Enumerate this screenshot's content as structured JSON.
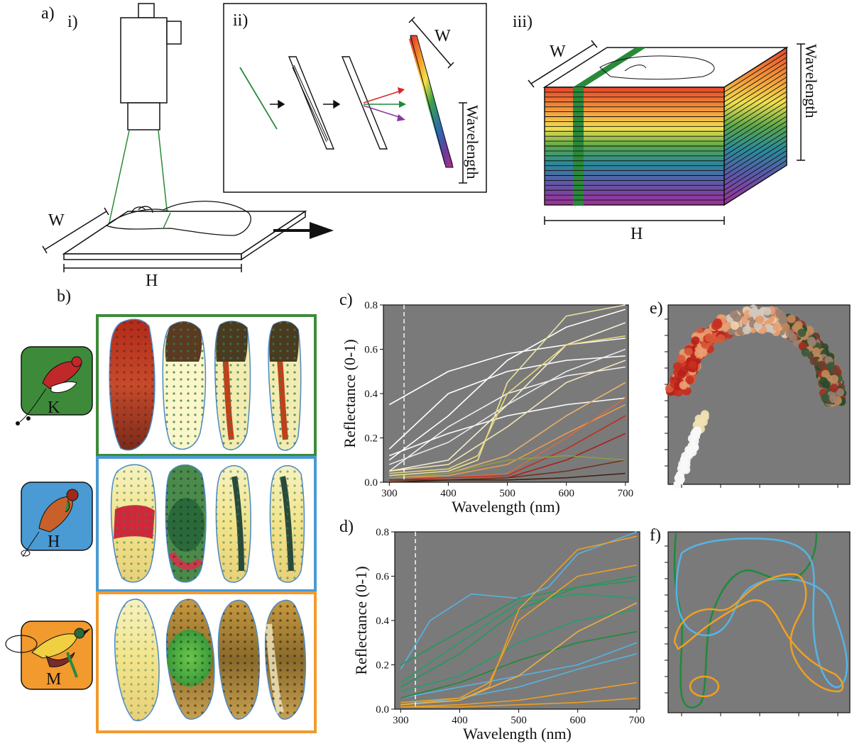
{
  "panel_labels": {
    "a": "a)",
    "ai": "i)",
    "aii": "ii)",
    "aiii": "iii)",
    "b": "b)",
    "c": "c)",
    "d": "d)",
    "e": "e)",
    "f": "f)"
  },
  "dims": {
    "W": "W",
    "H": "H",
    "wavelength": "Wavelength"
  },
  "species": [
    {
      "letter": "K",
      "box_color": "#3d8b3a",
      "frame_color": "#3d8b3a"
    },
    {
      "letter": "H",
      "box_color": "#4a9ad4",
      "frame_color": "#4a9ad4"
    },
    {
      "letter": "M",
      "box_color": "#f29a2e",
      "frame_color": "#f29a2e"
    }
  ],
  "colors": {
    "plot_bg": "#7a7a7a",
    "green": "#1f8a3a",
    "blue": "#55b4e6",
    "orange": "#f0a020"
  },
  "chart_data": [
    {
      "panel": "c",
      "type": "line",
      "xlabel": "Wavelength (nm)",
      "ylabel": "Reflectance (0-1)",
      "xlim": [
        290,
        705
      ],
      "ylim": [
        0,
        0.8
      ],
      "xticks": [
        300,
        400,
        500,
        600,
        700
      ],
      "yticks": [
        0.0,
        0.2,
        0.4,
        0.6,
        0.8
      ],
      "dashed_vline_x": 325,
      "grid": false,
      "series": [
        {
          "color": "#ffffff",
          "x": [
            300,
            400,
            500,
            600,
            700
          ],
          "y": [
            0.35,
            0.5,
            0.58,
            0.62,
            0.65
          ]
        },
        {
          "color": "#ffffff",
          "x": [
            300,
            400,
            500,
            600,
            700
          ],
          "y": [
            0.1,
            0.3,
            0.55,
            0.7,
            0.78
          ]
        },
        {
          "color": "#f0f0f0",
          "x": [
            300,
            400,
            500,
            600,
            700
          ],
          "y": [
            0.05,
            0.25,
            0.4,
            0.48,
            0.52
          ]
        },
        {
          "color": "#ffffff",
          "x": [
            300,
            400,
            500,
            600,
            700
          ],
          "y": [
            0.12,
            0.22,
            0.3,
            0.35,
            0.38
          ]
        },
        {
          "color": "#e8e8e8",
          "x": [
            300,
            400,
            500,
            600,
            700
          ],
          "y": [
            0.08,
            0.18,
            0.35,
            0.5,
            0.6
          ]
        },
        {
          "color": "#ffffff",
          "x": [
            300,
            400,
            500,
            600,
            700
          ],
          "y": [
            0.15,
            0.4,
            0.5,
            0.55,
            0.57
          ]
        },
        {
          "color": "#f5f0d0",
          "x": [
            300,
            400,
            500,
            600,
            700
          ],
          "y": [
            0.05,
            0.1,
            0.35,
            0.62,
            0.72
          ]
        },
        {
          "color": "#ece4a0",
          "x": [
            300,
            400,
            450,
            500,
            600,
            700
          ],
          "y": [
            0.03,
            0.05,
            0.1,
            0.45,
            0.75,
            0.8
          ]
        },
        {
          "color": "#e8d878",
          "x": [
            300,
            400,
            450,
            500,
            600,
            700
          ],
          "y": [
            0.04,
            0.06,
            0.12,
            0.4,
            0.62,
            0.66
          ]
        },
        {
          "color": "#f4e7b8",
          "x": [
            300,
            400,
            500,
            600,
            700
          ],
          "y": [
            0.05,
            0.08,
            0.25,
            0.45,
            0.55
          ]
        },
        {
          "color": "#e8b070",
          "x": [
            300,
            400,
            500,
            600,
            700
          ],
          "y": [
            0.02,
            0.04,
            0.12,
            0.3,
            0.45
          ]
        },
        {
          "color": "#e89a50",
          "x": [
            300,
            400,
            500,
            600,
            700
          ],
          "y": [
            0.02,
            0.03,
            0.08,
            0.22,
            0.35
          ]
        },
        {
          "color": "#d86a40",
          "x": [
            300,
            400,
            500,
            600,
            700
          ],
          "y": [
            0.01,
            0.02,
            0.04,
            0.2,
            0.38
          ]
        },
        {
          "color": "#c0301e",
          "x": [
            300,
            400,
            500,
            600,
            700
          ],
          "y": [
            0.01,
            0.02,
            0.03,
            0.15,
            0.3
          ]
        },
        {
          "color": "#a82018",
          "x": [
            300,
            400,
            500,
            600,
            700
          ],
          "y": [
            0.01,
            0.01,
            0.02,
            0.1,
            0.22
          ]
        },
        {
          "color": "#703018",
          "x": [
            300,
            400,
            500,
            600,
            700
          ],
          "y": [
            0.01,
            0.01,
            0.02,
            0.05,
            0.1
          ]
        },
        {
          "color": "#3c2010",
          "x": [
            300,
            400,
            500,
            600,
            700
          ],
          "y": [
            0.0,
            0.01,
            0.01,
            0.02,
            0.04
          ]
        },
        {
          "color": "#8aa048",
          "x": [
            300,
            400,
            500,
            600,
            700
          ],
          "y": [
            0.02,
            0.04,
            0.1,
            0.12,
            0.1
          ]
        }
      ]
    },
    {
      "panel": "d",
      "type": "line",
      "xlabel": "Wavelength (nm)",
      "ylabel": "Reflectance (0-1)",
      "xlim": [
        290,
        705
      ],
      "ylim": [
        0,
        0.8
      ],
      "xticks": [
        300,
        400,
        500,
        600,
        700
      ],
      "yticks": [
        0.0,
        0.2,
        0.4,
        0.6,
        0.8
      ],
      "dashed_vline_x": 325,
      "grid": false,
      "series": [
        {
          "color": "#55b4e6",
          "x": [
            300,
            350,
            420,
            500,
            550,
            600,
            700
          ],
          "y": [
            0.18,
            0.4,
            0.52,
            0.5,
            0.55,
            0.7,
            0.8
          ]
        },
        {
          "color": "#55b4e6",
          "x": [
            300,
            400,
            500,
            600,
            700
          ],
          "y": [
            0.05,
            0.1,
            0.15,
            0.2,
            0.3
          ]
        },
        {
          "color": "#55b4e6",
          "x": [
            300,
            400,
            500,
            600,
            700
          ],
          "y": [
            0.02,
            0.05,
            0.1,
            0.18,
            0.25
          ]
        },
        {
          "color": "#1f9a5a",
          "x": [
            300,
            400,
            500,
            600,
            700
          ],
          "y": [
            0.2,
            0.35,
            0.5,
            0.55,
            0.58
          ]
        },
        {
          "color": "#1f9a5a",
          "x": [
            300,
            400,
            500,
            600,
            700
          ],
          "y": [
            0.1,
            0.25,
            0.45,
            0.55,
            0.6
          ]
        },
        {
          "color": "#22a06a",
          "x": [
            300,
            400,
            500,
            600,
            700
          ],
          "y": [
            0.08,
            0.15,
            0.3,
            0.4,
            0.45
          ]
        },
        {
          "color": "#1f8a3a",
          "x": [
            300,
            400,
            500,
            600,
            700
          ],
          "y": [
            0.05,
            0.12,
            0.22,
            0.3,
            0.35
          ]
        },
        {
          "color": "#22a06a",
          "x": [
            300,
            400,
            500,
            600,
            700
          ],
          "y": [
            0.12,
            0.3,
            0.48,
            0.52,
            0.5
          ]
        },
        {
          "color": "#f0a020",
          "x": [
            300,
            400,
            450,
            500,
            600,
            700
          ],
          "y": [
            0.02,
            0.04,
            0.1,
            0.45,
            0.72,
            0.78
          ]
        },
        {
          "color": "#f0a020",
          "x": [
            300,
            400,
            450,
            500,
            600,
            700
          ],
          "y": [
            0.03,
            0.05,
            0.12,
            0.4,
            0.6,
            0.65
          ]
        },
        {
          "color": "#f0b040",
          "x": [
            300,
            400,
            500,
            600,
            700
          ],
          "y": [
            0.02,
            0.04,
            0.15,
            0.35,
            0.48
          ]
        },
        {
          "color": "#f0a020",
          "x": [
            300,
            400,
            500,
            600,
            700
          ],
          "y": [
            0.01,
            0.02,
            0.04,
            0.08,
            0.12
          ]
        },
        {
          "color": "#f0a020",
          "x": [
            300,
            400,
            500,
            600,
            700
          ],
          "y": [
            0.01,
            0.01,
            0.02,
            0.03,
            0.05
          ]
        }
      ]
    },
    {
      "panel": "e",
      "type": "scatter",
      "xlabel": "",
      "ylabel": "",
      "grid": false
    },
    {
      "panel": "f",
      "type": "line",
      "xlabel": "",
      "ylabel": "",
      "grid": false,
      "series": [
        {
          "color": "#1f8a3a"
        },
        {
          "color": "#55b4e6"
        },
        {
          "color": "#f0a020"
        }
      ]
    }
  ]
}
